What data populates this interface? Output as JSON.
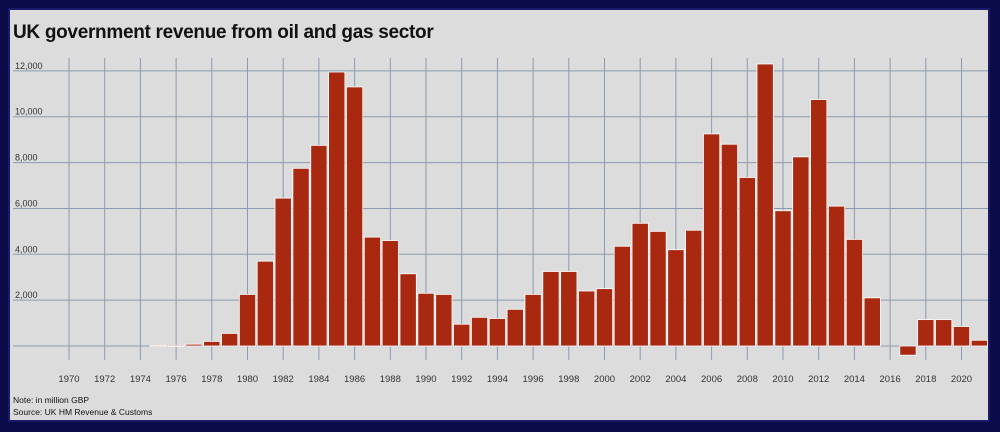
{
  "chart_data": {
    "type": "bar",
    "title": "UK government revenue from oil and gas sector",
    "note": "Note: in million GBP",
    "source": "Source: UK HM Revenue & Customs",
    "xlabel": "",
    "ylabel": "",
    "ylim": [
      -500,
      12500
    ],
    "yticks": [
      2000,
      4000,
      6000,
      8000,
      10000,
      12000
    ],
    "ytick_labels": [
      "2,000",
      "4,000",
      "6,000",
      "8,000",
      "10,000",
      "12,000"
    ],
    "xtick_labels": [
      "1970",
      "1972",
      "1974",
      "1976",
      "1978",
      "1980",
      "1982",
      "1984",
      "1986",
      "1988",
      "1990",
      "1992",
      "1994",
      "1996",
      "1998",
      "2000",
      "2002",
      "2004",
      "2006",
      "2008",
      "2010",
      "2012",
      "2014",
      "2016",
      "2018",
      "2020"
    ],
    "grid": true,
    "bar_color": "#a82810",
    "categories": [
      "1970",
      "1971",
      "1972",
      "1973",
      "1974",
      "1975",
      "1976",
      "1977",
      "1978",
      "1979",
      "1980",
      "1981",
      "1982",
      "1983",
      "1984",
      "1985",
      "1986",
      "1987",
      "1988",
      "1989",
      "1990",
      "1991",
      "1992",
      "1993",
      "1994",
      "1995",
      "1996",
      "1997",
      "1998",
      "1999",
      "2000",
      "2001",
      "2002",
      "2003",
      "2004",
      "2005",
      "2006",
      "2007",
      "2008",
      "2009",
      "2010",
      "2011",
      "2012",
      "2013",
      "2014",
      "2015",
      "2016",
      "2017",
      "2018",
      "2019",
      "2020",
      "2021"
    ],
    "values": [
      0,
      0,
      0,
      0,
      0,
      20,
      30,
      80,
      200,
      550,
      2250,
      3700,
      6450,
      7750,
      8750,
      11950,
      11300,
      4750,
      4600,
      3150,
      2300,
      2250,
      950,
      1250,
      1200,
      1600,
      2250,
      3250,
      3250,
      2400,
      2500,
      4350,
      5350,
      5000,
      4200,
      5050,
      9250,
      8800,
      7350,
      12300,
      5900,
      8250,
      10750,
      6100,
      4650,
      2100,
      0,
      -400,
      1150,
      1150,
      850,
      250
    ]
  }
}
